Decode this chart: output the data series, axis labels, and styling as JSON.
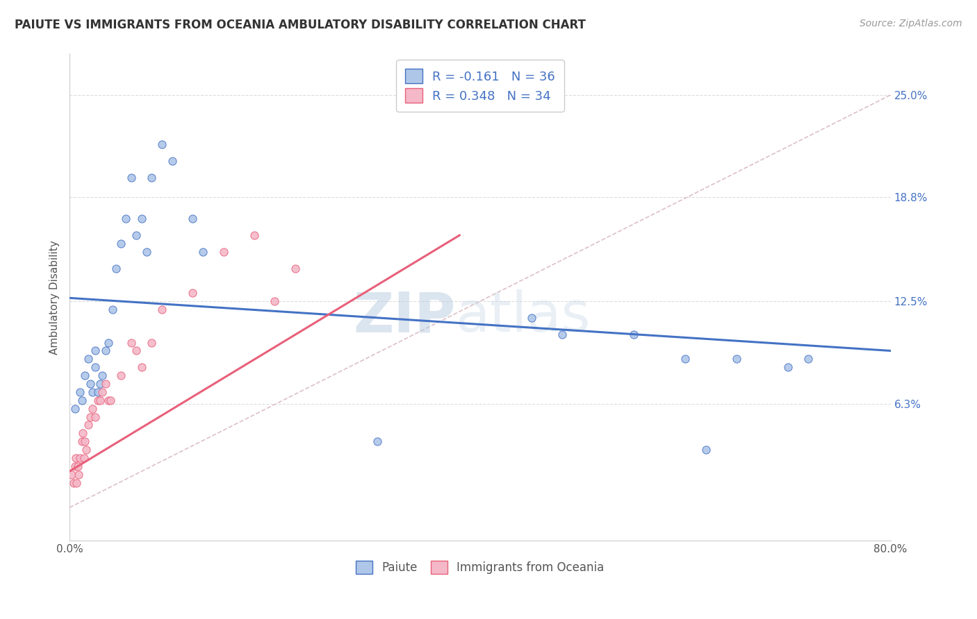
{
  "title": "PAIUTE VS IMMIGRANTS FROM OCEANIA AMBULATORY DISABILITY CORRELATION CHART",
  "source_text": "Source: ZipAtlas.com",
  "ylabel": "Ambulatory Disability",
  "ytick_labels": [
    "6.3%",
    "12.5%",
    "18.8%",
    "25.0%"
  ],
  "ytick_values": [
    0.063,
    0.125,
    0.188,
    0.25
  ],
  "xmin": 0.0,
  "xmax": 0.8,
  "ymin": -0.02,
  "ymax": 0.275,
  "legend_r1": "R = -0.161",
  "legend_n1": "N = 36",
  "legend_r2": "R = 0.348",
  "legend_n2": "N = 34",
  "color_paiute": "#aec6e8",
  "color_oceania": "#f4b8c8",
  "color_line_paiute": "#4472c4",
  "color_line_oceania": "#e8607a",
  "color_diag": "#d4b0b8",
  "watermark_zip": "ZIP",
  "watermark_atlas": "atlas",
  "paiute_x": [
    0.005,
    0.01,
    0.012,
    0.015,
    0.018,
    0.02,
    0.022,
    0.025,
    0.025,
    0.028,
    0.03,
    0.032,
    0.035,
    0.038,
    0.042,
    0.045,
    0.05,
    0.055,
    0.06,
    0.065,
    0.07,
    0.075,
    0.08,
    0.09,
    0.1,
    0.12,
    0.13,
    0.3,
    0.45,
    0.48,
    0.55,
    0.6,
    0.62,
    0.65,
    0.7,
    0.72
  ],
  "paiute_y": [
    0.06,
    0.07,
    0.065,
    0.08,
    0.09,
    0.075,
    0.07,
    0.085,
    0.095,
    0.07,
    0.075,
    0.08,
    0.095,
    0.1,
    0.12,
    0.145,
    0.16,
    0.175,
    0.2,
    0.165,
    0.175,
    0.155,
    0.2,
    0.22,
    0.21,
    0.175,
    0.155,
    0.04,
    0.115,
    0.105,
    0.105,
    0.09,
    0.035,
    0.09,
    0.085,
    0.09
  ],
  "oceania_x": [
    0.002,
    0.004,
    0.005,
    0.006,
    0.007,
    0.008,
    0.009,
    0.01,
    0.012,
    0.013,
    0.014,
    0.015,
    0.016,
    0.018,
    0.02,
    0.022,
    0.025,
    0.028,
    0.03,
    0.032,
    0.035,
    0.038,
    0.04,
    0.05,
    0.06,
    0.065,
    0.07,
    0.08,
    0.09,
    0.12,
    0.15,
    0.18,
    0.2,
    0.22
  ],
  "oceania_y": [
    0.02,
    0.015,
    0.025,
    0.03,
    0.015,
    0.025,
    0.02,
    0.03,
    0.04,
    0.045,
    0.03,
    0.04,
    0.035,
    0.05,
    0.055,
    0.06,
    0.055,
    0.065,
    0.065,
    0.07,
    0.075,
    0.065,
    0.065,
    0.08,
    0.1,
    0.095,
    0.085,
    0.1,
    0.12,
    0.13,
    0.155,
    0.165,
    0.125,
    0.145
  ],
  "paiute_trend_x": [
    0.0,
    0.8
  ],
  "paiute_trend_y": [
    0.127,
    0.095
  ],
  "oceania_trend_x": [
    0.0,
    0.38
  ],
  "oceania_trend_y": [
    0.022,
    0.165
  ]
}
